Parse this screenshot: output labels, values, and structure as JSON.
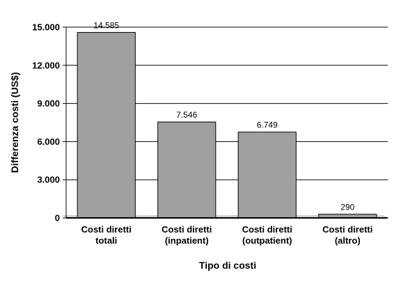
{
  "chart_data": {
    "type": "bar",
    "categories": [
      [
        "Costi diretti",
        "totali"
      ],
      [
        "Costi diretti",
        "(inpatient)"
      ],
      [
        "Costi diretti",
        "(outpatient)"
      ],
      [
        "Costi diretti",
        "(altro)"
      ]
    ],
    "values": [
      14585,
      7546,
      6749,
      290
    ],
    "data_labels": [
      "14.585",
      "7.546",
      "6.749",
      "290"
    ],
    "yticks": [
      0,
      3000,
      6000,
      9000,
      12000,
      15000
    ],
    "ytick_labels": [
      "0",
      "3.000",
      "6.000",
      "9.000",
      "12.000",
      "15.000"
    ],
    "ylim": [
      0,
      15000
    ],
    "xlabel": "Tipo di costi",
    "ylabel": "Differenza costi (US$)",
    "grid": true,
    "legend": "none",
    "colors": {
      "bar_fill": "#a0a0a0",
      "bar_stroke": "#000000",
      "grid": "#000000",
      "shadow": "#808080"
    }
  }
}
